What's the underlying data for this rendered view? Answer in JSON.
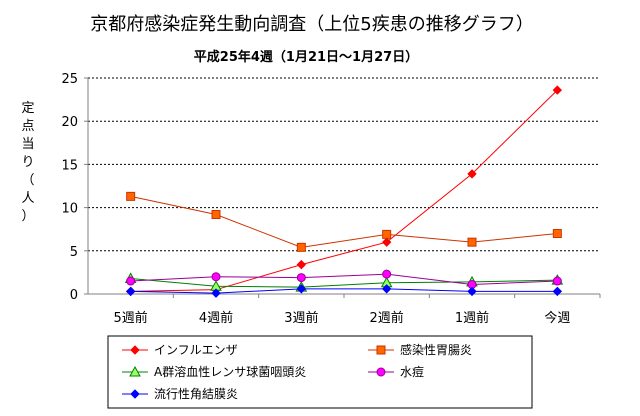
{
  "chart_data": {
    "type": "line",
    "title": "京都府感染症発生動向調査（上位5疾患の推移グラフ）",
    "subtitle": "平成25年4週（1月21日～1月27日）",
    "ylabel": [
      "定",
      "点",
      "当",
      "り",
      "（",
      "人",
      "）"
    ],
    "xlabel": "",
    "categories": [
      "5週前",
      "4週前",
      "3週前",
      "2週前",
      "1週前",
      "今週"
    ],
    "ylim": [
      0,
      25
    ],
    "yticks": [
      0,
      5,
      10,
      15,
      20,
      25
    ],
    "grid": "horizontal dashed",
    "legend_position": "bottom",
    "series": [
      {
        "name": "インフルエンザ",
        "color": "#ff0000",
        "marker": "diamond",
        "marker_fill": "#ff0000",
        "values": [
          0.3,
          0.5,
          3.4,
          6.0,
          13.9,
          23.6
        ]
      },
      {
        "name": "感染性胃腸炎",
        "color": "#cc3300",
        "marker": "square",
        "marker_fill": "#ff6600",
        "values": [
          11.3,
          9.2,
          5.4,
          6.9,
          6.0,
          7.0
        ]
      },
      {
        "name": "A群溶血性レンサ球菌咽頭炎",
        "color": "#008000",
        "marker": "triangle",
        "marker_fill": "#99ff66",
        "values": [
          1.8,
          0.9,
          0.8,
          1.3,
          1.4,
          1.6
        ]
      },
      {
        "name": "水痘",
        "color": "#990099",
        "marker": "circle",
        "marker_fill": "#ff00ff",
        "values": [
          1.5,
          2.0,
          1.9,
          2.3,
          1.1,
          1.5
        ]
      },
      {
        "name": "流行性角結膜炎",
        "color": "#0000ff",
        "marker": "diamond",
        "marker_fill": "#0000ff",
        "values": [
          0.3,
          0.1,
          0.6,
          0.6,
          0.3,
          0.3
        ]
      }
    ]
  }
}
